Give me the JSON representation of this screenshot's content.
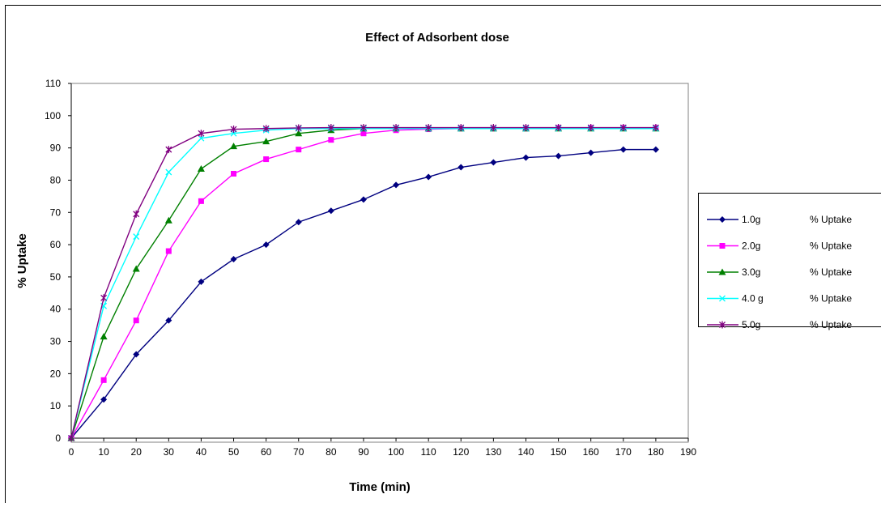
{
  "chart_data": {
    "type": "line",
    "title": "Effect of Adsorbent dose",
    "xlabel": "Time (min)",
    "ylabel": "% Uptake",
    "xlim": [
      0,
      190
    ],
    "ylim": [
      0,
      110
    ],
    "xticks": [
      0,
      10,
      20,
      30,
      40,
      50,
      60,
      70,
      80,
      90,
      100,
      110,
      120,
      130,
      140,
      150,
      160,
      170,
      180,
      190
    ],
    "yticks": [
      0,
      10,
      20,
      30,
      40,
      50,
      60,
      70,
      80,
      90,
      100,
      110
    ],
    "grid": false,
    "legend_position": "right",
    "x": [
      0,
      10,
      20,
      30,
      40,
      50,
      60,
      70,
      80,
      90,
      100,
      110,
      120,
      130,
      140,
      150,
      160,
      170,
      180
    ],
    "series": [
      {
        "name": "1.0g",
        "legend_suffix": "% Uptake",
        "color": "#000080",
        "marker": "diamond",
        "values": [
          0,
          12,
          26,
          36.5,
          48.5,
          55.5,
          60,
          67,
          70.5,
          74,
          78.5,
          81,
          84,
          85.5,
          87,
          87.5,
          88.5,
          89.5,
          89.5
        ]
      },
      {
        "name": "2.0g",
        "legend_suffix": "% Uptake",
        "color": "#ff00ff",
        "marker": "square",
        "values": [
          0,
          18,
          36.5,
          58,
          73.5,
          82,
          86.5,
          89.5,
          92.5,
          94.5,
          95.5,
          95.8,
          96,
          96,
          96,
          96.2,
          96.2,
          96.2,
          96.2
        ]
      },
      {
        "name": "3.0g",
        "legend_suffix": "% Uptake",
        "color": "#008000",
        "marker": "triangle",
        "values": [
          0,
          31.5,
          52.5,
          67.5,
          83.5,
          90.5,
          92,
          94.5,
          95.5,
          96,
          96,
          96,
          96,
          96,
          96,
          96,
          96,
          96,
          96
        ]
      },
      {
        "name": "4.0 g",
        "legend_suffix": "% Uptake",
        "color": "#00ffff",
        "marker": "x",
        "values": [
          0,
          41,
          62.5,
          82.5,
          93,
          94.5,
          95.5,
          96,
          96,
          96,
          96,
          96,
          96,
          96,
          96,
          96,
          96,
          96,
          96
        ]
      },
      {
        "name": "5.0g",
        "legend_suffix": "% Uptake",
        "color": "#800080",
        "marker": "star",
        "values": [
          0,
          43.5,
          69.5,
          89.5,
          94.5,
          95.8,
          96,
          96.2,
          96.3,
          96.3,
          96.3,
          96.3,
          96.3,
          96.3,
          96.3,
          96.3,
          96.3,
          96.3,
          96.3
        ]
      }
    ]
  }
}
